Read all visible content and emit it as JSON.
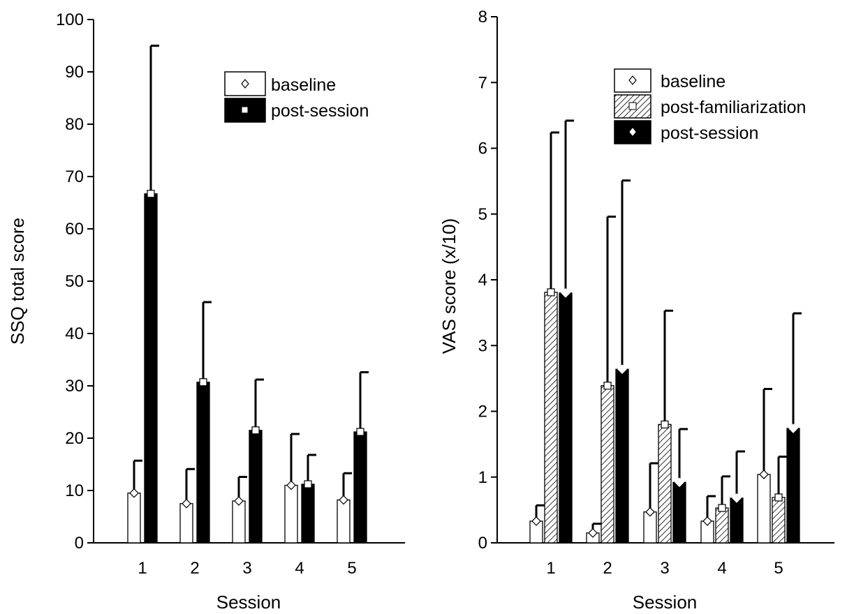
{
  "chart_data": [
    {
      "type": "bar",
      "ylabel": "SSQ total score",
      "xlabel": "Session",
      "categories": [
        "1",
        "2",
        "3",
        "4",
        "5"
      ],
      "ylim": [
        0,
        100
      ],
      "yticks": [
        "0",
        "10",
        "20",
        "30",
        "40",
        "50",
        "60",
        "70",
        "80",
        "90",
        "100"
      ],
      "legend_position": "top-right",
      "series": [
        {
          "name": "baseline",
          "values": [
            9.5,
            7.5,
            8,
            11,
            8.2
          ],
          "error_upper": [
            15.7,
            14.1,
            12.6,
            20.8,
            13.3
          ],
          "fill": "white",
          "marker": "diamond"
        },
        {
          "name": "post-session",
          "values": [
            66.7,
            30.7,
            21.5,
            11.2,
            21.2
          ],
          "error_upper": [
            95,
            46,
            31.2,
            16.8,
            32.6
          ],
          "fill": "black",
          "marker": "square"
        }
      ]
    },
    {
      "type": "bar",
      "ylabel": "VAS score (x/10)",
      "xlabel": "Session",
      "categories": [
        "1",
        "2",
        "3",
        "4",
        "5"
      ],
      "ylim": [
        0,
        8
      ],
      "yticks": [
        "0",
        "1",
        "2",
        "3",
        "4",
        "5",
        "6",
        "7",
        "8"
      ],
      "legend_position": "top-right",
      "series": [
        {
          "name": "baseline",
          "values": [
            0.33,
            0.15,
            0.47,
            0.33,
            1.04
          ],
          "error_upper": [
            0.57,
            0.29,
            1.21,
            0.71,
            2.34
          ],
          "fill": "white",
          "marker": "diamond"
        },
        {
          "name": "post-familiarization",
          "values": [
            3.81,
            2.39,
            1.8,
            0.53,
            0.69
          ],
          "error_upper": [
            6.24,
            4.96,
            3.53,
            1.01,
            1.31
          ],
          "fill": "hatched",
          "marker": "square"
        },
        {
          "name": "post-session",
          "values": [
            3.8,
            2.64,
            0.92,
            0.68,
            1.74
          ],
          "error_upper": [
            6.42,
            5.51,
            1.73,
            1.39,
            3.49
          ],
          "fill": "black",
          "marker": "diamond"
        }
      ]
    }
  ]
}
